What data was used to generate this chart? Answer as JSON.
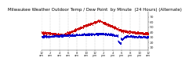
{
  "title": "Milwaukee Weather Outdoor Temp / Dew Point  by Minute  (24 Hours) (Alternate)",
  "title_fontsize": 4.0,
  "background_color": "#ffffff",
  "grid_color": "#999999",
  "temp_color": "#cc0000",
  "dew_color": "#0000cc",
  "ylim": [
    5,
    80
  ],
  "yticks": [
    10,
    20,
    30,
    40,
    50,
    60,
    70
  ],
  "ylabel_fontsize": 3.2,
  "xlabel_fontsize": 2.8,
  "num_points": 1440
}
